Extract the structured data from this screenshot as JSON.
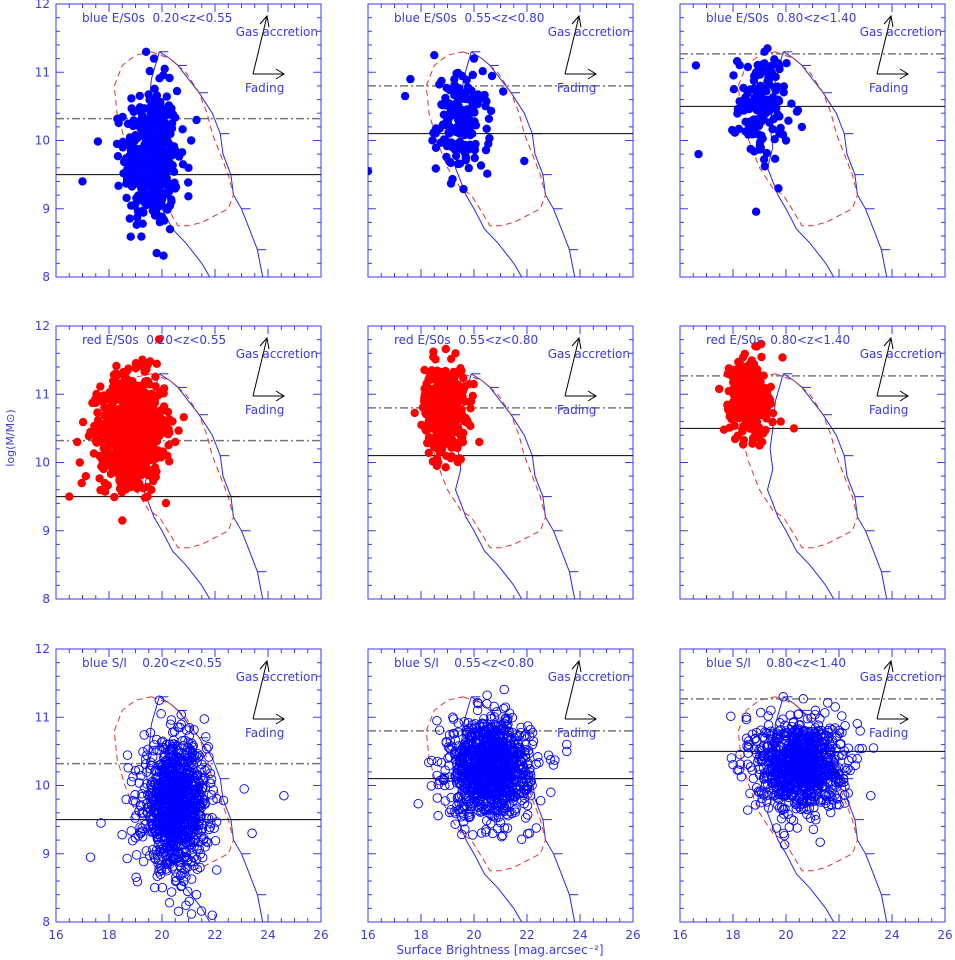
{
  "colors": {
    "axis": "#3a3aff",
    "text": "#3a3adf",
    "blue_marker": "#0000ff",
    "red_marker": "#ff0000",
    "envelope_blue": "#2828e0",
    "envelope_red": "#e03030",
    "hline_solid": "#000000",
    "hline_dash": "#777777",
    "arrow": "#000000"
  },
  "figure": {
    "ylabel": "log(M/M⊙)",
    "xlabel": "Surface Brightness [mag.arcsec⁻²]",
    "xlim": [
      16,
      26
    ],
    "ylim": [
      8,
      12
    ],
    "xticks": [
      "16",
      "18",
      "20",
      "22",
      "24",
      "26"
    ],
    "yticks": [
      "8",
      "9",
      "10",
      "11",
      "12"
    ],
    "arrow_labels": {
      "up": "Gas accretion",
      "right": "Fading"
    }
  },
  "envelope": {
    "blue_solid": [
      [
        19.9,
        11.3
      ],
      [
        20.3,
        11.2
      ],
      [
        20.6,
        11.1
      ],
      [
        21.0,
        10.9
      ],
      [
        21.4,
        10.7
      ],
      [
        21.9,
        10.4
      ],
      [
        22.2,
        10.1
      ],
      [
        22.3,
        9.8
      ],
      [
        22.6,
        9.5
      ],
      [
        22.7,
        9.2
      ],
      [
        23.0,
        9.0
      ],
      [
        23.3,
        8.7
      ],
      [
        23.6,
        8.4
      ],
      [
        23.7,
        8.2
      ],
      [
        23.8,
        8.0
      ]
    ],
    "blue_solid_lower": [
      [
        19.9,
        11.3
      ],
      [
        19.6,
        10.9
      ],
      [
        19.5,
        10.5
      ],
      [
        19.4,
        10.2
      ],
      [
        19.5,
        9.9
      ],
      [
        19.3,
        9.6
      ],
      [
        19.5,
        9.4
      ],
      [
        19.7,
        9.2
      ],
      [
        20.0,
        9.0
      ],
      [
        20.4,
        8.7
      ],
      [
        20.9,
        8.5
      ],
      [
        21.5,
        8.2
      ],
      [
        21.8,
        8.0
      ]
    ],
    "red_dashed": [
      [
        19.6,
        11.3
      ],
      [
        20.3,
        11.2
      ],
      [
        20.9,
        11.0
      ],
      [
        21.4,
        10.7
      ],
      [
        21.7,
        10.4
      ],
      [
        21.9,
        10.1
      ],
      [
        22.2,
        9.8
      ],
      [
        22.5,
        9.5
      ],
      [
        22.7,
        9.2
      ],
      [
        22.5,
        9.0
      ],
      [
        22.0,
        8.9
      ],
      [
        21.5,
        8.8
      ],
      [
        21.0,
        8.75
      ],
      [
        20.6,
        8.75
      ],
      [
        20.3,
        8.95
      ],
      [
        19.9,
        9.2
      ],
      [
        19.5,
        9.3
      ],
      [
        19.0,
        9.6
      ],
      [
        18.6,
        10.0
      ],
      [
        18.3,
        10.4
      ],
      [
        18.2,
        10.8
      ],
      [
        18.5,
        11.1
      ],
      [
        19.0,
        11.25
      ],
      [
        19.6,
        11.3
      ]
    ]
  },
  "chart_data": [
    {
      "type": "scatter",
      "title": "blue E/S0s  0.20<z<0.55",
      "marker": "filled",
      "color": "blue",
      "hline_solid": 9.5,
      "hline_dashdot": 10.32,
      "cloud": {
        "cx": 19.6,
        "cy": 9.75,
        "sx": 0.5,
        "sy": 0.5,
        "n": 420
      },
      "points": [
        [
          19.4,
          11.3
        ],
        [
          19.7,
          11.2
        ],
        [
          20.1,
          11.05
        ],
        [
          21.3,
          10.3
        ],
        [
          21.1,
          10.0
        ],
        [
          18.3,
          9.95
        ],
        [
          17.0,
          9.4
        ],
        [
          19.8,
          8.35
        ],
        [
          20.3,
          8.7
        ],
        [
          21.0,
          9.6
        ]
      ]
    },
    {
      "type": "scatter",
      "title": "blue E/S0s  0.55<z<0.80",
      "marker": "filled",
      "color": "blue",
      "hline_solid": 10.1,
      "hline_dashdot": 10.8,
      "cloud": {
        "cx": 19.6,
        "cy": 10.25,
        "sx": 0.5,
        "sy": 0.35,
        "n": 150
      },
      "points": [
        [
          16.0,
          9.55
        ],
        [
          17.6,
          10.9
        ],
        [
          21.9,
          9.7
        ],
        [
          18.5,
          11.25
        ],
        [
          20.0,
          11.2
        ],
        [
          17.4,
          10.65
        ]
      ]
    },
    {
      "type": "scatter",
      "title": "blue E/S0s  0.80<z<1.40",
      "marker": "filled",
      "color": "blue",
      "hline_solid": 10.5,
      "hline_dashdot": 11.27,
      "cloud": {
        "cx": 19.1,
        "cy": 10.5,
        "sx": 0.45,
        "sy": 0.4,
        "n": 130
      },
      "points": [
        [
          16.7,
          9.8
        ],
        [
          16.6,
          11.1
        ],
        [
          19.3,
          11.35
        ],
        [
          20.6,
          10.2
        ],
        [
          20.0,
          10.0
        ]
      ]
    },
    {
      "type": "scatter",
      "title": "red E/S0s  0.20<z<0.55",
      "marker": "filled",
      "color": "red",
      "hline_solid": 9.5,
      "hline_dashdot": 10.32,
      "cloud": {
        "cx": 18.9,
        "cy": 10.5,
        "sx": 0.6,
        "sy": 0.38,
        "n": 900
      },
      "points": [
        [
          16.5,
          9.5
        ],
        [
          16.9,
          10.0
        ],
        [
          16.8,
          10.3
        ],
        [
          18.5,
          9.15
        ],
        [
          19.6,
          9.6
        ],
        [
          20.2,
          10.1
        ],
        [
          20.5,
          10.3
        ]
      ]
    },
    {
      "type": "scatter",
      "title": "red E/S0s  0.55<z<0.80",
      "marker": "filled",
      "color": "red",
      "hline_solid": 10.1,
      "hline_dashdot": 10.8,
      "cloud": {
        "cx": 18.9,
        "cy": 10.8,
        "sx": 0.38,
        "sy": 0.3,
        "n": 500
      },
      "points": [
        [
          18.6,
          9.95
        ],
        [
          19.5,
          10.05
        ],
        [
          20.2,
          10.3
        ],
        [
          19.3,
          11.6
        ]
      ]
    },
    {
      "type": "scatter",
      "title": "red E/S0s  0.80<z<1.40",
      "marker": "filled",
      "color": "red",
      "hline_solid": 10.5,
      "hline_dashdot": 11.27,
      "cloud": {
        "cx": 18.6,
        "cy": 10.95,
        "sx": 0.35,
        "sy": 0.27,
        "n": 360
      },
      "points": [
        [
          17.8,
          11.3
        ],
        [
          18.9,
          11.7
        ],
        [
          19.8,
          10.6
        ],
        [
          20.3,
          10.5
        ],
        [
          19.1,
          10.3
        ]
      ]
    },
    {
      "type": "scatter",
      "title": "blue S/I    0.20<z<0.55",
      "marker": "open",
      "color": "blue",
      "hline_solid": 9.5,
      "hline_dashdot": 10.32,
      "cloud": {
        "cx": 20.5,
        "cy": 9.7,
        "sx": 0.6,
        "sy": 0.45,
        "n": 1100
      },
      "points": [
        [
          17.3,
          8.95
        ],
        [
          21.9,
          8.1
        ],
        [
          24.6,
          9.85
        ],
        [
          23.4,
          9.3
        ],
        [
          23.1,
          9.95
        ],
        [
          17.7,
          9.45
        ],
        [
          19.9,
          11.25
        ],
        [
          21.3,
          8.4
        ]
      ]
    },
    {
      "type": "scatter",
      "title": "blue S/I    0.55<z<0.80",
      "marker": "open",
      "color": "blue",
      "hline_solid": 10.1,
      "hline_dashdot": 10.8,
      "cloud": {
        "cx": 20.6,
        "cy": 10.25,
        "sx": 0.75,
        "sy": 0.35,
        "n": 1100
      },
      "points": [
        [
          23.5,
          10.6
        ],
        [
          23.5,
          10.5
        ],
        [
          23.0,
          10.3
        ],
        [
          18.6,
          10.95
        ],
        [
          18.9,
          10.0
        ],
        [
          19.2,
          11.0
        ],
        [
          22.9,
          9.9
        ]
      ]
    },
    {
      "type": "scatter",
      "title": "blue S/I    0.80<z<1.40",
      "marker": "open",
      "color": "blue",
      "hline_solid": 10.5,
      "hline_dashdot": 11.27,
      "cloud": {
        "cx": 20.5,
        "cy": 10.3,
        "sx": 0.8,
        "sy": 0.33,
        "n": 950
      },
      "points": [
        [
          18.6,
          10.6
        ],
        [
          18.5,
          11.0
        ],
        [
          23.3,
          10.55
        ],
        [
          23.2,
          9.85
        ],
        [
          19.9,
          11.3
        ],
        [
          22.8,
          10.8
        ]
      ]
    }
  ]
}
